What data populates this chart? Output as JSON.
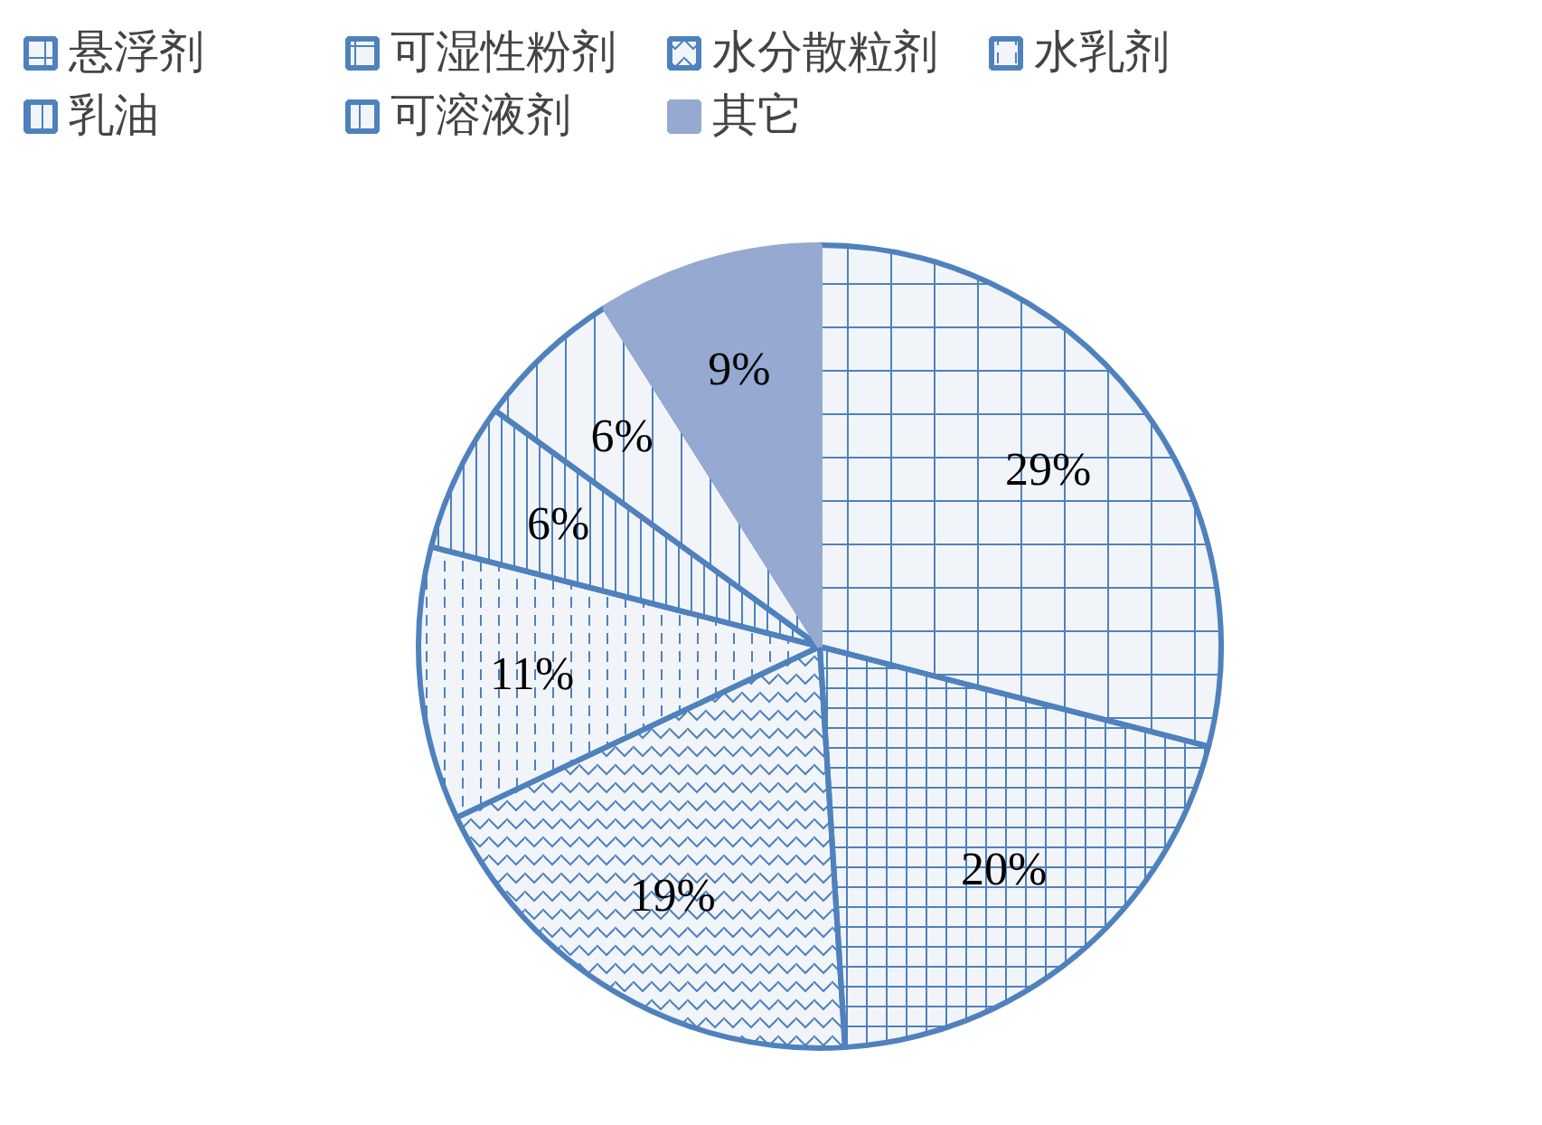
{
  "chart_data": {
    "type": "pie",
    "categories": [
      "悬浮剂",
      "可湿性粉剂",
      "水分散粒剂",
      "水乳剂",
      "乳油",
      "可溶液剂",
      "其它"
    ],
    "values": [
      29,
      20,
      19,
      11,
      6,
      6,
      9
    ],
    "value_labels": [
      "29%",
      "20%",
      "19%",
      "11%",
      "6%",
      "6%",
      "9%"
    ],
    "colors": [
      "#4f81bd",
      "#4f81bd",
      "#4f81bd",
      "#4f81bd",
      "#4f81bd",
      "#4f81bd",
      "#95a9d1"
    ],
    "legend": "top"
  }
}
